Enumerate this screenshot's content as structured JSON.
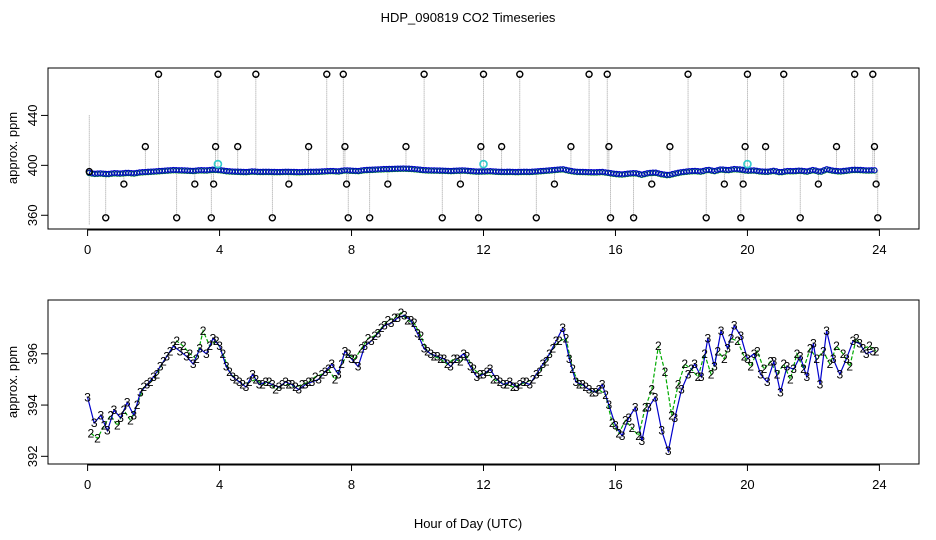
{
  "title": "HDP_090819  CO2 Timeseries",
  "xlabel": "Hour of Day (UTC)",
  "colors": {
    "black_points": "#000000",
    "blue_series": "#0000cc",
    "green_series": "#00aa00",
    "cyan_points": "#33cccc",
    "gray_lines": "#888888"
  },
  "chart_data": [
    {
      "type": "scatter",
      "title": "HDP_090819  CO2 Timeseries",
      "xlabel": "",
      "ylabel": "approx. ppm",
      "xlim": [
        -1.2,
        25.2
      ],
      "ylim": [
        349,
        478
      ],
      "x_ticks": [
        "0",
        "4",
        "8",
        "12",
        "16",
        "20",
        "24"
      ],
      "x_tick_values": [
        0,
        4,
        8,
        12,
        16,
        20,
        24
      ],
      "y_ticks": [
        "360",
        "400",
        "440"
      ],
      "y_tick_values": [
        360,
        400,
        440
      ],
      "baseline_ppm": 396,
      "black_outliers": [
        {
          "x": 0.05,
          "y": 395
        },
        {
          "x": 0.55,
          "y": 358
        },
        {
          "x": 1.1,
          "y": 385
        },
        {
          "x": 1.75,
          "y": 415
        },
        {
          "x": 2.15,
          "y": 473
        },
        {
          "x": 2.7,
          "y": 358
        },
        {
          "x": 3.25,
          "y": 385
        },
        {
          "x": 3.75,
          "y": 358
        },
        {
          "x": 3.82,
          "y": 385
        },
        {
          "x": 3.88,
          "y": 415
        },
        {
          "x": 3.95,
          "y": 473
        },
        {
          "x": 4.55,
          "y": 415
        },
        {
          "x": 5.1,
          "y": 473
        },
        {
          "x": 5.6,
          "y": 358
        },
        {
          "x": 6.1,
          "y": 385
        },
        {
          "x": 6.7,
          "y": 415
        },
        {
          "x": 7.25,
          "y": 473
        },
        {
          "x": 7.75,
          "y": 473
        },
        {
          "x": 7.8,
          "y": 415
        },
        {
          "x": 7.85,
          "y": 385
        },
        {
          "x": 7.9,
          "y": 358
        },
        {
          "x": 8.55,
          "y": 358
        },
        {
          "x": 9.1,
          "y": 385
        },
        {
          "x": 9.65,
          "y": 415
        },
        {
          "x": 10.2,
          "y": 473
        },
        {
          "x": 10.75,
          "y": 358
        },
        {
          "x": 11.3,
          "y": 385
        },
        {
          "x": 11.85,
          "y": 358
        },
        {
          "x": 11.92,
          "y": 415
        },
        {
          "x": 12.0,
          "y": 473
        },
        {
          "x": 12.55,
          "y": 415
        },
        {
          "x": 13.1,
          "y": 473
        },
        {
          "x": 13.6,
          "y": 358
        },
        {
          "x": 14.15,
          "y": 385
        },
        {
          "x": 14.65,
          "y": 415
        },
        {
          "x": 15.2,
          "y": 473
        },
        {
          "x": 15.75,
          "y": 473
        },
        {
          "x": 15.8,
          "y": 415
        },
        {
          "x": 15.85,
          "y": 358
        },
        {
          "x": 16.55,
          "y": 358
        },
        {
          "x": 17.1,
          "y": 385
        },
        {
          "x": 17.65,
          "y": 415
        },
        {
          "x": 18.2,
          "y": 473
        },
        {
          "x": 18.75,
          "y": 358
        },
        {
          "x": 19.3,
          "y": 385
        },
        {
          "x": 19.8,
          "y": 358
        },
        {
          "x": 19.87,
          "y": 385
        },
        {
          "x": 19.93,
          "y": 415
        },
        {
          "x": 20.0,
          "y": 473
        },
        {
          "x": 20.55,
          "y": 415
        },
        {
          "x": 21.1,
          "y": 473
        },
        {
          "x": 21.6,
          "y": 358
        },
        {
          "x": 22.15,
          "y": 385
        },
        {
          "x": 22.7,
          "y": 415
        },
        {
          "x": 23.25,
          "y": 473
        },
        {
          "x": 23.8,
          "y": 473
        },
        {
          "x": 23.85,
          "y": 415
        },
        {
          "x": 23.9,
          "y": 385
        },
        {
          "x": 23.95,
          "y": 358
        }
      ],
      "cyan_points": [
        {
          "x": 3.95,
          "y": 401
        },
        {
          "x": 12.0,
          "y": 401
        },
        {
          "x": 20.0,
          "y": 401
        }
      ],
      "dense_series_colors": [
        "blue",
        "green"
      ]
    },
    {
      "type": "line",
      "title": "",
      "xlabel": "Hour of Day (UTC)",
      "ylabel": "approx. ppm",
      "xlim": [
        -1.2,
        25.2
      ],
      "ylim": [
        391.7,
        398.1
      ],
      "x_ticks": [
        "0",
        "4",
        "8",
        "12",
        "16",
        "20",
        "24"
      ],
      "x_tick_values": [
        0,
        4,
        8,
        12,
        16,
        20,
        24
      ],
      "y_ticks": [
        "392",
        "394",
        "396"
      ],
      "y_tick_values": [
        392,
        394,
        396
      ],
      "series": [
        {
          "name": "3",
          "symbol": "3",
          "color": "blue",
          "x": [
            0.0,
            0.2,
            0.4,
            0.6,
            0.8,
            1.0,
            1.2,
            1.4,
            1.6,
            1.8,
            2.0,
            2.2,
            2.4,
            2.6,
            2.8,
            3.0,
            3.2,
            3.4,
            3.6,
            3.8,
            4.0,
            4.2,
            4.4,
            4.6,
            4.8,
            5.0,
            5.2,
            5.4,
            5.6,
            5.8,
            6.0,
            6.2,
            6.4,
            6.6,
            6.8,
            7.0,
            7.2,
            7.4,
            7.6,
            7.8,
            8.0,
            8.2,
            8.4,
            8.6,
            8.8,
            9.0,
            9.2,
            9.4,
            9.6,
            9.8,
            10.0,
            10.2,
            10.4,
            10.6,
            10.8,
            11.0,
            11.2,
            11.4,
            11.6,
            11.8,
            12.0,
            12.2,
            12.4,
            12.6,
            12.8,
            13.0,
            13.2,
            13.4,
            13.6,
            13.8,
            14.0,
            14.2,
            14.4,
            14.6,
            14.8,
            15.0,
            15.2,
            15.4,
            15.6,
            15.8,
            16.0,
            16.2,
            16.4,
            16.6,
            16.8,
            17.0,
            17.2,
            17.4,
            17.6,
            17.8,
            18.0,
            18.2,
            18.4,
            18.6,
            18.8,
            19.0,
            19.2,
            19.4,
            19.6,
            19.8,
            20.0,
            20.2,
            20.4,
            20.6,
            20.8,
            21.0,
            21.2,
            21.4,
            21.6,
            21.8,
            22.0,
            22.2,
            22.4,
            22.6,
            22.8,
            23.0,
            23.2,
            23.4,
            23.6,
            23.8
          ],
          "values": [
            394.3,
            393.3,
            393.6,
            393.0,
            393.8,
            393.5,
            394.1,
            393.6,
            394.5,
            394.8,
            395.1,
            395.5,
            395.9,
            396.3,
            396.1,
            395.9,
            395.6,
            396.2,
            396.0,
            396.6,
            396.3,
            395.5,
            395.1,
            394.9,
            394.7,
            395.2,
            394.8,
            394.9,
            394.8,
            394.7,
            394.9,
            394.8,
            394.6,
            394.8,
            394.9,
            395.0,
            395.3,
            395.6,
            395.2,
            396.1,
            395.8,
            395.5,
            396.3,
            396.5,
            396.8,
            397.1,
            397.2,
            397.4,
            397.5,
            397.3,
            396.8,
            396.2,
            396.0,
            395.9,
            395.8,
            395.5,
            395.8,
            396.0,
            395.5,
            395.1,
            395.2,
            395.4,
            395.0,
            394.8,
            394.9,
            394.7,
            394.9,
            394.8,
            395.2,
            395.6,
            396.0,
            396.5,
            397.0,
            395.8,
            394.9,
            394.8,
            394.6,
            394.5,
            394.8,
            394.0,
            393.2,
            392.8,
            393.5,
            393.9,
            392.6,
            393.9,
            394.3,
            393.0,
            392.2,
            393.5,
            394.6,
            395.2,
            395.6,
            395.1,
            396.6,
            395.5,
            396.9,
            396.2,
            397.1,
            396.7,
            395.8,
            396.0,
            395.2,
            394.9,
            395.7,
            394.5,
            395.5,
            395.4,
            395.9,
            395.1,
            396.4,
            394.8,
            396.9,
            395.8,
            395.2,
            395.8,
            396.5,
            396.4,
            396.0,
            396.1
          ]
        },
        {
          "name": "2",
          "symbol": "2",
          "color": "green",
          "x": [
            0.1,
            0.3,
            0.5,
            0.7,
            0.9,
            1.1,
            1.3,
            1.5,
            1.7,
            1.9,
            2.1,
            2.3,
            2.5,
            2.7,
            2.9,
            3.1,
            3.3,
            3.5,
            3.7,
            3.9,
            4.1,
            4.3,
            4.5,
            4.7,
            4.9,
            5.1,
            5.3,
            5.5,
            5.7,
            5.9,
            6.1,
            6.3,
            6.5,
            6.7,
            6.9,
            7.1,
            7.3,
            7.5,
            7.7,
            7.9,
            8.1,
            8.3,
            8.5,
            8.7,
            8.9,
            9.1,
            9.3,
            9.5,
            9.7,
            9.9,
            10.1,
            10.3,
            10.5,
            10.7,
            10.9,
            11.1,
            11.3,
            11.5,
            11.7,
            11.9,
            12.1,
            12.3,
            12.5,
            12.7,
            12.9,
            13.1,
            13.3,
            13.5,
            13.7,
            13.9,
            14.1,
            14.3,
            14.5,
            14.7,
            14.9,
            15.1,
            15.3,
            15.5,
            15.7,
            15.9,
            16.1,
            16.3,
            16.5,
            16.7,
            16.9,
            17.1,
            17.3,
            17.5,
            17.7,
            17.9,
            18.1,
            18.3,
            18.5,
            18.7,
            18.9,
            19.1,
            19.3,
            19.5,
            19.7,
            19.9,
            20.1,
            20.3,
            20.5,
            20.7,
            20.9,
            21.1,
            21.3,
            21.5,
            21.7,
            21.9,
            22.1,
            22.3,
            22.5,
            22.7,
            22.9,
            23.1,
            23.3,
            23.5,
            23.7,
            23.9
          ],
          "values": [
            392.9,
            392.7,
            393.2,
            393.6,
            393.2,
            393.8,
            393.4,
            394.0,
            394.7,
            394.9,
            395.2,
            395.7,
            396.1,
            396.5,
            396.3,
            396.0,
            395.8,
            396.9,
            396.3,
            396.5,
            396.0,
            395.3,
            395.0,
            394.8,
            394.9,
            395.0,
            394.8,
            394.9,
            394.6,
            394.8,
            394.8,
            394.7,
            394.8,
            394.9,
            395.1,
            395.2,
            395.4,
            395.0,
            395.6,
            396.0,
            395.8,
            396.2,
            396.6,
            396.7,
            397.0,
            397.3,
            397.4,
            397.6,
            397.3,
            397.2,
            396.7,
            396.1,
            395.9,
            395.8,
            395.6,
            395.8,
            395.7,
            395.9,
            395.4,
            395.2,
            395.3,
            395.0,
            394.9,
            394.8,
            394.7,
            394.8,
            394.9,
            395.0,
            395.3,
            395.7,
            396.2,
            396.5,
            396.6,
            395.4,
            394.8,
            394.7,
            394.5,
            394.6,
            394.4,
            393.3,
            392.9,
            393.4,
            393.1,
            392.8,
            393.9,
            394.6,
            396.3,
            395.3,
            393.6,
            394.8,
            395.6,
            395.4,
            395.1,
            396.0,
            395.2,
            396.1,
            395.8,
            396.6,
            396.5,
            395.9,
            395.5,
            396.1,
            395.4,
            395.7,
            395.2,
            395.6,
            395.0,
            396.0,
            395.4,
            396.2,
            395.8,
            396.1,
            395.6,
            396.3,
            396.0,
            395.5,
            396.6,
            396.2,
            396.3,
            396.1
          ]
        }
      ]
    }
  ]
}
